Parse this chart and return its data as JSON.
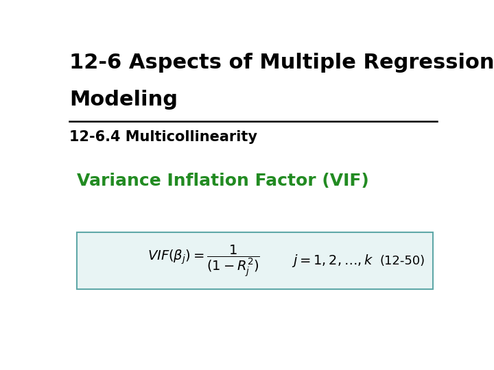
{
  "title_line1": "12-6 Aspects of Multiple Regression",
  "title_line2": "Modeling",
  "subtitle": "12-6.4 Multicollinearity",
  "green_heading": "Variance Inflation Factor (VIF)",
  "equation_label": "(12-50)",
  "title_color": "#000000",
  "subtitle_color": "#000000",
  "green_color": "#228B22",
  "box_fill": "#e8f4f4",
  "box_edge": "#5fa8a8",
  "background_color": "#ffffff",
  "title_fontsize": 22,
  "subtitle_fontsize": 15,
  "green_fontsize": 18,
  "eq_fontsize": 14,
  "label_fontsize": 13
}
